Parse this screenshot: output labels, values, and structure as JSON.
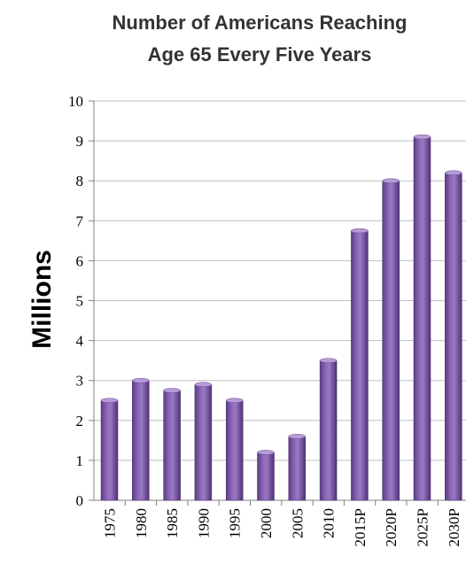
{
  "chart_data": {
    "type": "bar",
    "title": "Number of Americans Reaching Age 65 Every Five Years",
    "title_lines": [
      "Number of Americans Reaching",
      "Age 65 Every Five Years"
    ],
    "ylabel": "Millions",
    "xlabel": "",
    "categories": [
      "1975",
      "1980",
      "1985",
      "1990",
      "1995",
      "2000",
      "2005",
      "2010",
      "2015P",
      "2020P",
      "2025P",
      "2030P"
    ],
    "values": [
      2.5,
      3.0,
      2.75,
      2.9,
      2.5,
      1.2,
      1.6,
      3.5,
      6.75,
      8.0,
      9.1,
      8.2
    ],
    "ylim": [
      0,
      10
    ],
    "yticks": [
      0,
      1,
      2,
      3,
      4,
      5,
      6,
      7,
      8,
      9,
      10
    ],
    "grid": true,
    "legend": "none",
    "bar_color": "#7e5aa6"
  }
}
